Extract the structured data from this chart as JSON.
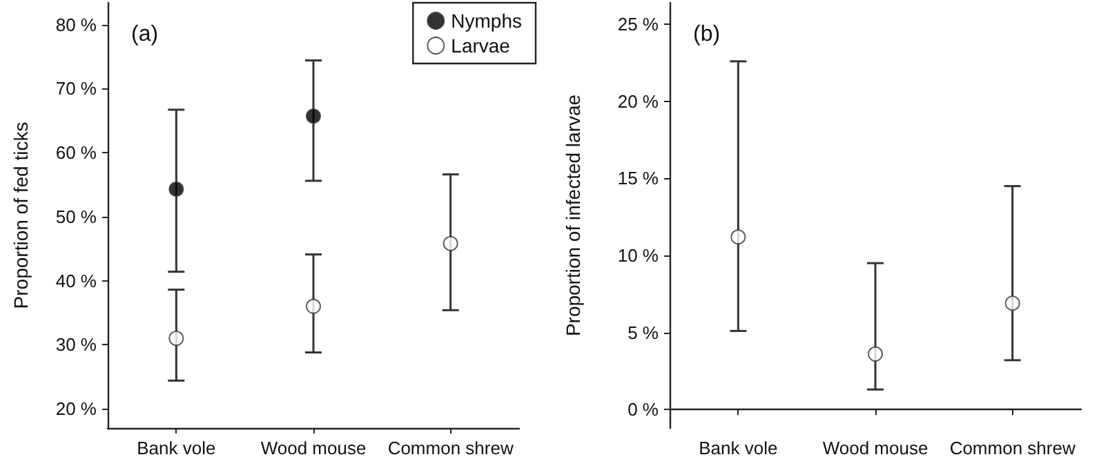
{
  "chart_data": [
    {
      "type": "scatter",
      "title": "(a)",
      "ylabel": "Proportion of fed ticks",
      "categories": [
        "Bank vole",
        "Wood mouse",
        "Common shrew"
      ],
      "series": [
        {
          "name": "Nymphs",
          "color": "#000000",
          "values": [
            54.3,
            65.7,
            null
          ],
          "errors": [
            [
              41.4,
              66.7
            ],
            [
              55.6,
              74.4
            ],
            null
          ]
        },
        {
          "name": "Larvae",
          "color": "#ffffff",
          "values": [
            31,
            36,
            45.8
          ],
          "errors": [
            [
              24.4,
              38.6
            ],
            [
              28.8,
              44.1
            ],
            [
              35.4,
              56.6
            ]
          ]
        }
      ],
      "ylim": [
        17,
        83.4
      ],
      "yticks": [
        {
          "value": 20,
          "label": "20 %"
        },
        {
          "value": 30,
          "label": "30 %"
        },
        {
          "value": 40,
          "label": "40 %"
        },
        {
          "value": 50,
          "label": "50 %"
        },
        {
          "value": 60,
          "label": "60 %"
        },
        {
          "value": 70,
          "label": "70 %"
        },
        {
          "value": 80,
          "label": "80 %"
        }
      ],
      "marker": "circle",
      "legend": "top right"
    },
    {
      "type": "scatter",
      "title": "(b)",
      "ylabel": "Proportion of infected larvae",
      "categories": [
        "Bank vole",
        "Wood mouse",
        "Common shrew"
      ],
      "series": [
        {
          "color": "#ffffff",
          "values": [
            11.2,
            3.6,
            6.9
          ],
          "errors": [
            [
              5.1,
              22.6
            ],
            [
              1.3,
              9.5
            ],
            [
              3.2,
              14.5
            ]
          ]
        }
      ],
      "ylim": [
        -1.2,
        26.4
      ],
      "yticks": [
        {
          "value": 0,
          "label": "0 %"
        },
        {
          "value": 5,
          "label": "5 %"
        },
        {
          "value": 10,
          "label": "10 %"
        },
        {
          "value": 15,
          "label": "15 %"
        },
        {
          "value": 20,
          "label": "20 %"
        },
        {
          "value": 25,
          "label": "25 %"
        }
      ],
      "marker": "circle"
    }
  ]
}
